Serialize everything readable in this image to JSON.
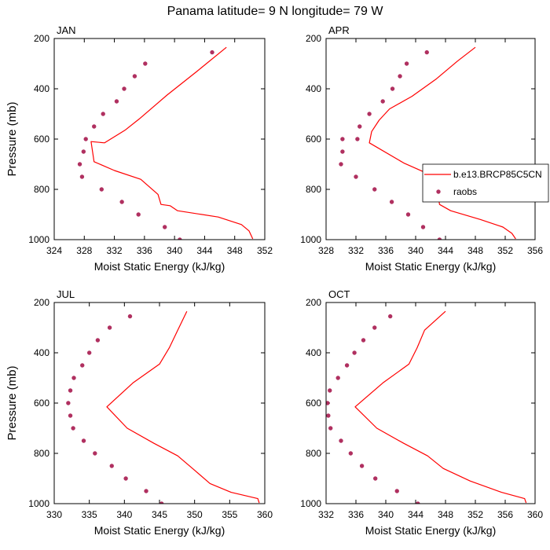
{
  "figure": {
    "title": "Panama  latitude= 9 N longitude= 79 W"
  },
  "colors": {
    "model": "#ff0000",
    "obs": "#b03060",
    "axis": "#000000"
  },
  "legend": {
    "model_label": "b.e13.BRCP85C5CN",
    "obs_label": "raobs",
    "location": "APR panel, right side"
  },
  "chart_data": [
    {
      "type": "line",
      "panel": "JAN",
      "xlabel": "Moist Static Energy (kJ/kg)",
      "ylabel": "Pressure (mb)",
      "xlim": [
        324,
        352
      ],
      "ylim": [
        1000,
        200
      ],
      "xticks": [
        324,
        328,
        332,
        336,
        340,
        344,
        348,
        352
      ],
      "yticks": [
        200,
        400,
        600,
        800,
        1000
      ],
      "series": [
        {
          "name": "b.e13.BRCP85C5CN",
          "points": [
            [
              346.9,
              235
            ],
            [
              343.0,
              330
            ],
            [
              339.0,
              425
            ],
            [
              335.3,
              520
            ],
            [
              333.4,
              565
            ],
            [
              330.7,
              615
            ],
            [
              328.9,
              610
            ],
            [
              329.3,
              690
            ],
            [
              332.0,
              725
            ],
            [
              335.5,
              760
            ],
            [
              337.8,
              820
            ],
            [
              338.2,
              860
            ],
            [
              339.4,
              865
            ],
            [
              340.4,
              885
            ],
            [
              345.8,
              910
            ],
            [
              348.9,
              940
            ],
            [
              349.9,
              965
            ],
            [
              350.4,
              997
            ]
          ]
        },
        {
          "name": "raobs",
          "points": [
            [
              345.0,
              255
            ],
            [
              336.1,
              300
            ],
            [
              334.7,
              350
            ],
            [
              333.3,
              400
            ],
            [
              332.3,
              450
            ],
            [
              330.5,
              500
            ],
            [
              329.3,
              550
            ],
            [
              328.2,
              600
            ],
            [
              327.9,
              650
            ],
            [
              327.4,
              700
            ],
            [
              327.7,
              750
            ],
            [
              330.3,
              800
            ],
            [
              333.0,
              850
            ],
            [
              335.2,
              900
            ],
            [
              338.7,
              950
            ],
            [
              340.7,
              1000
            ]
          ]
        }
      ]
    },
    {
      "type": "line",
      "panel": "APR",
      "xlabel": "Moist Static Energy (kJ/kg)",
      "ylabel": "",
      "xlim": [
        328,
        356
      ],
      "ylim": [
        1000,
        200
      ],
      "xticks": [
        328,
        332,
        336,
        340,
        344,
        348,
        352,
        356
      ],
      "yticks": [
        200,
        400,
        600,
        800,
        1000
      ],
      "series": [
        {
          "name": "b.e13.BRCP85C5CN",
          "points": [
            [
              348.0,
              235
            ],
            [
              345.6,
              290
            ],
            [
              342.8,
              360
            ],
            [
              339.5,
              430
            ],
            [
              336.5,
              480
            ],
            [
              335.1,
              525
            ],
            [
              334.1,
              570
            ],
            [
              333.8,
              615
            ],
            [
              338.4,
              695
            ],
            [
              342.2,
              745
            ],
            [
              342.8,
              780
            ],
            [
              343.0,
              820
            ],
            [
              343.2,
              860
            ],
            [
              344.7,
              885
            ],
            [
              348.7,
              920
            ],
            [
              351.7,
              950
            ],
            [
              352.9,
              975
            ],
            [
              353.4,
              997
            ]
          ]
        },
        {
          "name": "raobs",
          "points": [
            [
              341.5,
              255
            ],
            [
              338.8,
              300
            ],
            [
              337.9,
              350
            ],
            [
              336.9,
              400
            ],
            [
              335.6,
              450
            ],
            [
              333.8,
              500
            ],
            [
              332.5,
              550
            ],
            [
              332.2,
              600
            ],
            [
              330.2,
              600
            ],
            [
              330.2,
              650
            ],
            [
              330.0,
              700
            ],
            [
              332.0,
              750
            ],
            [
              334.5,
              800
            ],
            [
              336.8,
              850
            ],
            [
              339.0,
              900
            ],
            [
              341.0,
              950
            ],
            [
              343.2,
              1000
            ]
          ]
        }
      ]
    },
    {
      "type": "line",
      "panel": "JUL",
      "xlabel": "Moist Static Energy (kJ/kg)",
      "ylabel": "Pressure (mb)",
      "xlim": [
        330,
        360
      ],
      "ylim": [
        1000,
        200
      ],
      "xticks": [
        330,
        335,
        340,
        345,
        350,
        355,
        360
      ],
      "yticks": [
        200,
        400,
        600,
        800,
        1000
      ],
      "series": [
        {
          "name": "b.e13.BRCP85C5CN",
          "points": [
            [
              348.9,
              235
            ],
            [
              347.6,
              310
            ],
            [
              346.4,
              380
            ],
            [
              345.0,
              445
            ],
            [
              341.2,
              520
            ],
            [
              337.5,
              615
            ],
            [
              340.4,
              700
            ],
            [
              344.2,
              760
            ],
            [
              347.6,
              810
            ],
            [
              349.7,
              860
            ],
            [
              352.2,
              920
            ],
            [
              355.2,
              955
            ],
            [
              359.0,
              980
            ],
            [
              359.2,
              997
            ]
          ]
        },
        {
          "name": "raobs",
          "points": [
            [
              340.8,
              255
            ],
            [
              337.9,
              300
            ],
            [
              336.2,
              350
            ],
            [
              335.0,
              400
            ],
            [
              334.0,
              450
            ],
            [
              332.8,
              500
            ],
            [
              332.3,
              550
            ],
            [
              332.0,
              600
            ],
            [
              332.3,
              650
            ],
            [
              332.7,
              700
            ],
            [
              334.2,
              750
            ],
            [
              335.8,
              800
            ],
            [
              338.2,
              850
            ],
            [
              340.2,
              900
            ],
            [
              343.1,
              950
            ],
            [
              345.3,
              1000
            ]
          ]
        }
      ]
    },
    {
      "type": "line",
      "panel": "OCT",
      "xlabel": "Moist Static Energy (kJ/kg)",
      "ylabel": "",
      "xlim": [
        332,
        360
      ],
      "ylim": [
        1000,
        200
      ],
      "xticks": [
        332,
        336,
        340,
        344,
        348,
        352,
        356,
        360
      ],
      "yticks": [
        200,
        400,
        600,
        800,
        1000
      ],
      "series": [
        {
          "name": "b.e13.BRCP85C5CN",
          "points": [
            [
              348.0,
              235
            ],
            [
              345.2,
              310
            ],
            [
              344.2,
              380
            ],
            [
              343.1,
              445
            ],
            [
              339.6,
              520
            ],
            [
              335.9,
              615
            ],
            [
              338.8,
              700
            ],
            [
              342.4,
              760
            ],
            [
              345.6,
              810
            ],
            [
              347.7,
              860
            ],
            [
              351.3,
              910
            ],
            [
              355.5,
              955
            ],
            [
              358.6,
              980
            ],
            [
              358.8,
              997
            ]
          ]
        },
        {
          "name": "raobs",
          "points": [
            [
              340.6,
              255
            ],
            [
              338.5,
              300
            ],
            [
              337.0,
              350
            ],
            [
              335.8,
              400
            ],
            [
              334.8,
              450
            ],
            [
              333.6,
              500
            ],
            [
              332.5,
              550
            ],
            [
              332.2,
              600
            ],
            [
              332.3,
              650
            ],
            [
              332.6,
              700
            ],
            [
              334.0,
              750
            ],
            [
              335.3,
              800
            ],
            [
              336.8,
              850
            ],
            [
              338.6,
              900
            ],
            [
              341.5,
              950
            ],
            [
              344.3,
              1000
            ]
          ]
        }
      ]
    }
  ]
}
